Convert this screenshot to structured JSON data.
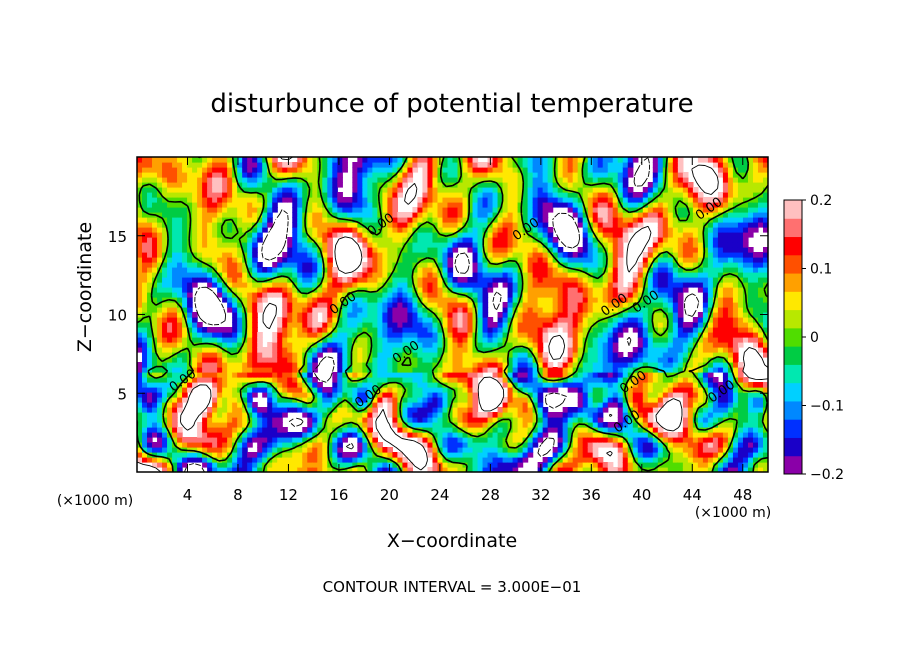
{
  "chart_data": {
    "type": "heatmap",
    "title": "disturbunce of potential temperature",
    "xlabel": "X−coordinate",
    "ylabel": "Z−coordinate",
    "x_unit": "(×1000 m)",
    "z_unit": "(×1000 m)",
    "xlim": [
      0,
      50
    ],
    "ylim": [
      0,
      20
    ],
    "x_ticks": [
      4,
      8,
      12,
      16,
      20,
      24,
      28,
      32,
      36,
      40,
      44,
      48
    ],
    "x_tick_labels": [
      "4",
      "8",
      "12",
      "16",
      "20",
      "24",
      "28",
      "32",
      "36",
      "40",
      "44",
      "48"
    ],
    "y_ticks": [
      5,
      10,
      15
    ],
    "y_tick_labels": [
      "5",
      "10",
      "15"
    ],
    "colorbar": {
      "range": [
        -0.2,
        0.2
      ],
      "tick_values": [
        0.2,
        0.1,
        0,
        -0.1,
        -0.2
      ],
      "tick_labels": [
        "0.2",
        "0.1",
        "0",
        "−0.1",
        "−0.2"
      ],
      "palette": [
        "#8a00a8",
        "#1a00c8",
        "#0030ff",
        "#0088ff",
        "#00d0ff",
        "#00e8b0",
        "#00cc44",
        "#50dd00",
        "#b8e800",
        "#ffe800",
        "#ffa000",
        "#ff5000",
        "#ff0000",
        "#ff7070",
        "#ffc0c0"
      ],
      "above_max_color": "#ffffff",
      "below_min_color": "#ffffff"
    },
    "contour_label": "0.00",
    "contour_label_positions": [
      [
        3.8,
        5.6
      ],
      [
        18.5,
        4.6
      ],
      [
        21.5,
        7.4
      ],
      [
        16.5,
        10.5
      ],
      [
        19.5,
        15.5
      ],
      [
        31.0,
        15.2
      ],
      [
        39.5,
        5.5
      ],
      [
        45.5,
        16.5
      ],
      [
        38.0,
        10.4
      ],
      [
        40.5,
        10.6
      ],
      [
        46.5,
        4.9
      ],
      [
        39.0,
        3.0
      ]
    ],
    "footer": "CONTOUR INTERVAL = 3.000E−01"
  }
}
